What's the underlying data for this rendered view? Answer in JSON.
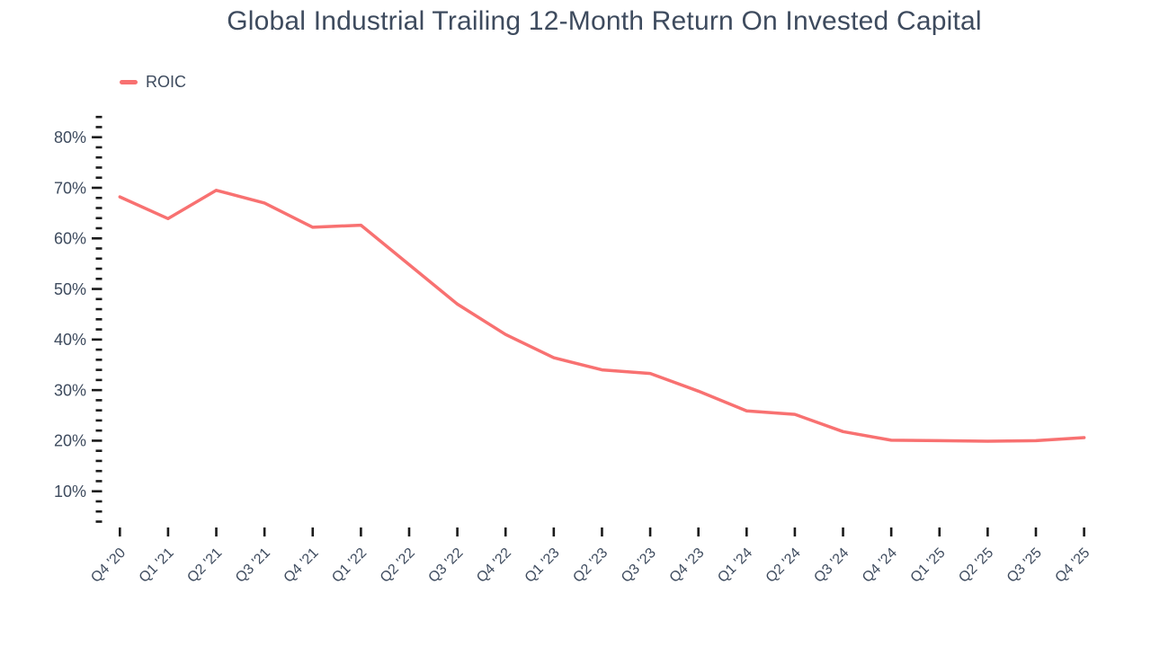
{
  "chart_data": {
    "type": "line",
    "title": "Global Industrial Trailing 12-Month Return On Invested Capital",
    "xlabel": "",
    "ylabel": "",
    "categories": [
      "Q4 '20",
      "Q1 '21",
      "Q2 '21",
      "Q3 '21",
      "Q4 '21",
      "Q1 '22",
      "Q2 '22",
      "Q3 '22",
      "Q4 '22",
      "Q1 '23",
      "Q2 '23",
      "Q3 '23",
      "Q4 '23",
      "Q1 '24",
      "Q2 '24",
      "Q3 '24",
      "Q4 '24",
      "Q1 '25",
      "Q2 '25",
      "Q3 '25",
      "Q4 '25"
    ],
    "series": [
      {
        "name": "ROIC",
        "color": "#F87171",
        "values": [
          68.2,
          63.9,
          69.5,
          67.0,
          62.2,
          62.6,
          54.8,
          47.0,
          41.0,
          36.4,
          34.0,
          33.3,
          29.8,
          25.9,
          25.2,
          21.8,
          20.1,
          20.0,
          19.9,
          20.0,
          20.6
        ]
      }
    ],
    "y_axis": {
      "tick_suffix": "%",
      "labeled_ticks": [
        10,
        20,
        30,
        40,
        50,
        60,
        70,
        80
      ],
      "minor_tick_step": 2,
      "axis_min": 4,
      "axis_max": 84
    },
    "grid": false,
    "legend_position": "top-left",
    "x_tick_label_rotation": -45
  },
  "styles": {
    "background": "#FFFFFF",
    "text_color": "#3E4B5E",
    "tick_color": "#1A1A1A",
    "line_color": "#F87171"
  }
}
